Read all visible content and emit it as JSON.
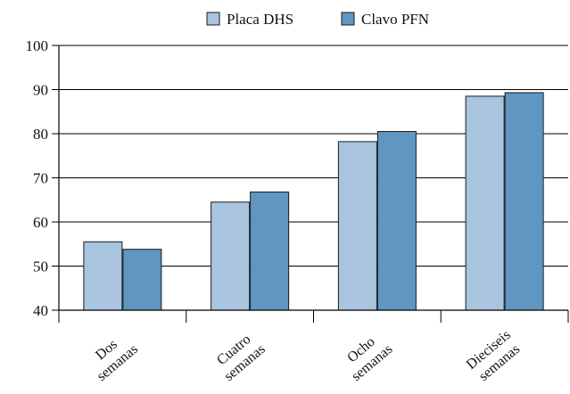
{
  "chart_data": {
    "type": "bar",
    "categories": [
      "Dos semanas",
      "Cuatro semanas",
      "Ocho semanas",
      "Dieciseis semanas"
    ],
    "category_lines": [
      [
        "Dos",
        "semanas"
      ],
      [
        "Cuatro",
        "semanas"
      ],
      [
        "Ocho",
        "semanas"
      ],
      [
        "Dieciseis",
        "semanas"
      ]
    ],
    "series": [
      {
        "name": "Placa DHS",
        "color": "#a9c4de",
        "values": [
          55.5,
          64.5,
          78.2,
          88.5
        ]
      },
      {
        "name": "Clavo PFN",
        "color": "#5f96c2",
        "values": [
          53.8,
          66.8,
          80.5,
          89.3
        ]
      }
    ],
    "yticks": [
      40,
      50,
      60,
      70,
      80,
      90,
      100
    ],
    "ylim": [
      40,
      100
    ],
    "grid": "horizontal",
    "legend_position": "top-center",
    "title": "",
    "xlabel": "",
    "ylabel": ""
  }
}
